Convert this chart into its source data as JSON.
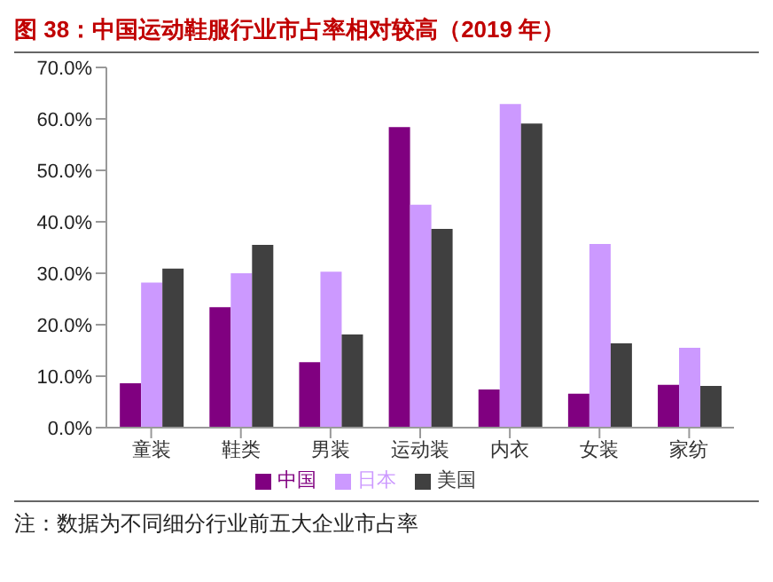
{
  "chart_data": {
    "type": "bar",
    "title": "图 38：中国运动鞋服行业市占率相对较高（2019 年）",
    "categories": [
      "童装",
      "鞋类",
      "男装",
      "运动装",
      "内衣",
      "女装",
      "家纺"
    ],
    "series": [
      {
        "name": "中国",
        "color": "#800080",
        "values": [
          8.6,
          23.4,
          12.7,
          58.4,
          7.4,
          6.6,
          8.3
        ]
      },
      {
        "name": "日本",
        "color": "#cc99ff",
        "values": [
          28.2,
          30.0,
          30.3,
          43.3,
          62.9,
          35.7,
          15.5
        ]
      },
      {
        "name": "美国",
        "color": "#404040",
        "values": [
          30.9,
          35.5,
          18.1,
          38.6,
          59.1,
          16.4,
          8.1
        ]
      }
    ],
    "ylim": [
      0,
      70
    ],
    "yticks": [
      {
        "value": 0,
        "label": "0.0%"
      },
      {
        "value": 10,
        "label": "10.0%"
      },
      {
        "value": 20,
        "label": "20.0%"
      },
      {
        "value": 30,
        "label": "30.0%"
      },
      {
        "value": 40,
        "label": "40.0%"
      },
      {
        "value": 50,
        "label": "50.0%"
      },
      {
        "value": 60,
        "label": "60.0%"
      },
      {
        "value": 70,
        "label": "70.0%"
      }
    ],
    "grid": false,
    "legend": "bottom",
    "annotations": [
      "注：数据为不同细分行业前五大企业市占率"
    ]
  }
}
